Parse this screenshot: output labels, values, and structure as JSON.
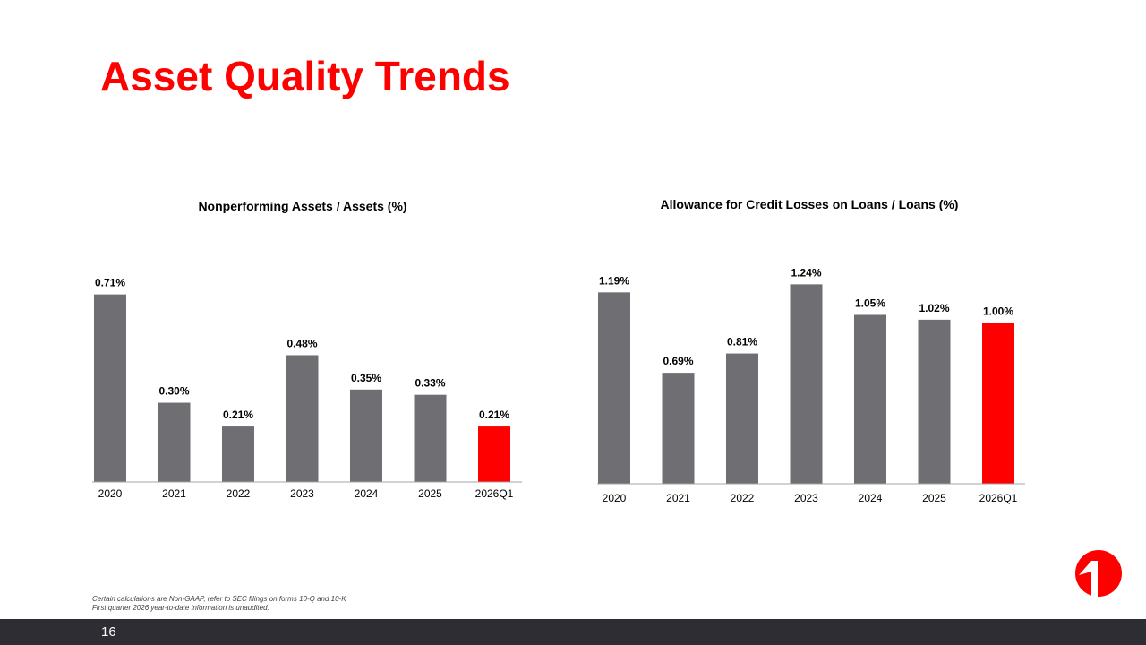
{
  "title": "Asset Quality Trends",
  "colors": {
    "title": "#ff0000",
    "bar": "#6f6e73",
    "highlight_bar": "#ff0000",
    "footer_bar": "#2e2d33"
  },
  "logo": {
    "icon": "first-bank-logo-icon"
  },
  "chart_data": [
    {
      "type": "bar",
      "title": "Nonperforming Assets / Assets (%)",
      "categories": [
        "2020",
        "2021",
        "2022",
        "2023",
        "2024",
        "2025",
        "2026Q1"
      ],
      "values": [
        0.71,
        0.3,
        0.21,
        0.48,
        0.35,
        0.33,
        0.21
      ],
      "labels": [
        "0.71%",
        "0.30%",
        "0.21%",
        "0.48%",
        "0.35%",
        "0.33%",
        "0.21%"
      ],
      "highlight_index": 6,
      "ylim": [
        0,
        0.78
      ],
      "grid": false,
      "legend": "none"
    },
    {
      "type": "bar",
      "title": "Allowance for Credit Losses on Loans / Loans (%)",
      "categories": [
        "2020",
        "2021",
        "2022",
        "2023",
        "2024",
        "2025",
        "2026Q1"
      ],
      "values": [
        1.19,
        0.69,
        0.81,
        1.24,
        1.05,
        1.02,
        1.0
      ],
      "labels": [
        "1.19%",
        "0.69%",
        "0.81%",
        "1.24%",
        "1.05%",
        "1.02%",
        "1.00%"
      ],
      "highlight_index": 6,
      "ylim": [
        0,
        1.32
      ],
      "grid": false,
      "legend": "none"
    }
  ],
  "footnotes": [
    "Certain calculations are Non-GAAP, refer to SEC filings on forms 10-Q and 10-K",
    "First quarter 2026 year-to-date information is unaudited."
  ],
  "page_number": "16"
}
